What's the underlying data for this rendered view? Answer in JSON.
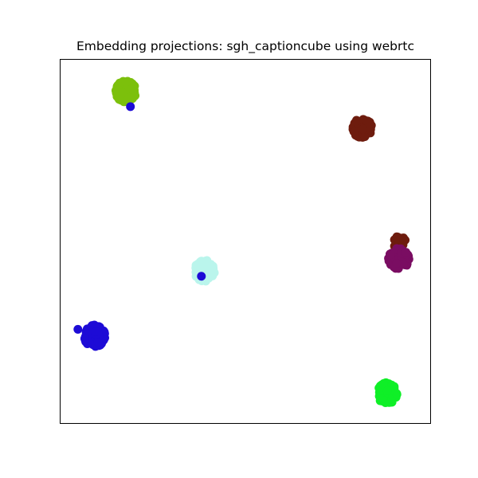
{
  "chart_data": {
    "type": "scatter",
    "title": "Embedding projections: sgh_captioncube using webrtc",
    "xlabel": "",
    "ylabel": "",
    "xlim": [
      0,
      1
    ],
    "ylim": [
      0,
      1
    ],
    "grid": false,
    "axis_ticks": false,
    "legend": "none",
    "clusters": [
      {
        "color": "#7cc00c",
        "center": [
          0.177,
          0.913
        ],
        "spread": 0.028,
        "count": 140
      },
      {
        "color": "#6e1c0e",
        "center": [
          0.816,
          0.812
        ],
        "spread": 0.026,
        "count": 110
      },
      {
        "color": "#6e1c0e",
        "center": [
          0.918,
          0.496
        ],
        "spread": 0.018,
        "count": 20
      },
      {
        "color": "#7a0d62",
        "center": [
          0.915,
          0.453
        ],
        "spread": 0.028,
        "count": 130
      },
      {
        "color": "#baf5ec",
        "center": [
          0.389,
          0.419
        ],
        "spread": 0.028,
        "count": 110
      },
      {
        "color": "#1d0bd6",
        "center": [
          0.092,
          0.24
        ],
        "spread": 0.029,
        "count": 140
      },
      {
        "color": "#0fef27",
        "center": [
          0.884,
          0.082
        ],
        "spread": 0.028,
        "count": 120
      }
    ],
    "points": [
      {
        "color": "#1d0bd6",
        "x": 0.189,
        "y": 0.871
      },
      {
        "color": "#1d0bd6",
        "x": 0.381,
        "y": 0.404
      },
      {
        "color": "#1d0bd6",
        "x": 0.047,
        "y": 0.258
      }
    ]
  }
}
